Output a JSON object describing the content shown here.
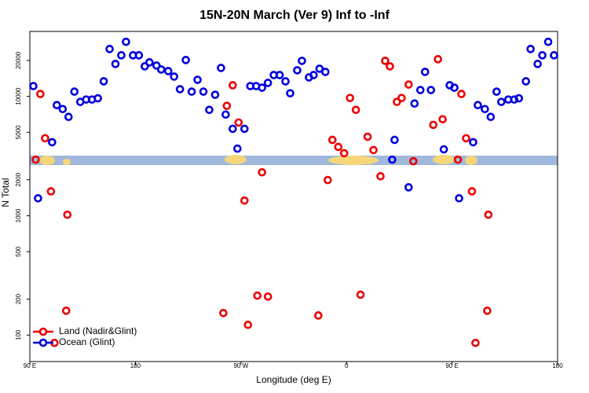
{
  "chart_data": {
    "type": "scatter",
    "title": "15N-20N March (Ver 9)   Inf to -Inf",
    "x_label": "Longitude (deg E)",
    "y_label": "N Total",
    "log_y": true,
    "legend": "bottom-left",
    "xlim": [
      90,
      540
    ],
    "xticks": [
      {
        "value": 90,
        "label": "90 E"
      },
      {
        "value": 180,
        "label": "180"
      },
      {
        "value": 270,
        "label": "90 W"
      },
      {
        "value": 360,
        "label": "0"
      },
      {
        "value": 450,
        "label": "90 E"
      },
      {
        "value": 540,
        "label": "180"
      }
    ],
    "ylim": [
      60,
      35000
    ],
    "yticks": [
      100,
      200,
      500,
      1000,
      2000,
      5000,
      10000,
      20000
    ],
    "series": [
      {
        "name": "Land (Nadir&Glint)",
        "color": "#ee0000",
        "x": [
          95,
          99,
          103,
          108,
          111,
          121,
          122,
          255,
          258,
          263,
          268,
          273,
          276,
          284,
          288,
          293,
          336,
          344,
          348,
          353,
          358,
          363,
          368,
          372,
          378,
          383,
          389,
          393,
          397,
          403,
          407,
          413,
          417,
          434,
          438,
          442,
          455,
          458,
          462,
          467,
          470,
          480,
          481
        ],
        "values": [
          2950,
          10470,
          4460,
          1600,
          86,
          160,
          1020,
          153,
          8330,
          12390,
          6040,
          1340,
          122,
          214,
          2310,
          210,
          146,
          1990,
          4320,
          3770,
          3340,
          9700,
          7710,
          218,
          4590,
          3550,
          2140,
          19850,
          17860,
          8990,
          9700,
          12570,
          2860,
          5770,
          20480,
          6430,
          2950,
          10470,
          4460,
          1600,
          86,
          160,
          1020
        ]
      },
      {
        "name": "Ocean (Glint)",
        "color": "#0000dd",
        "x": [
          93,
          97,
          109,
          113,
          118,
          123,
          128,
          133,
          138,
          143,
          148,
          153,
          158,
          163,
          168,
          172,
          178,
          183,
          188,
          192,
          198,
          202,
          208,
          213,
          218,
          223,
          228,
          233,
          238,
          243,
          248,
          253,
          257,
          263,
          267,
          273,
          278,
          283,
          288,
          293,
          298,
          303,
          308,
          312,
          318,
          322,
          328,
          332,
          337,
          342,
          399,
          401,
          413,
          418,
          423,
          427,
          432,
          443,
          448,
          452,
          456,
          468,
          472,
          478,
          483,
          488,
          492,
          498,
          503,
          507,
          513,
          517,
          523,
          527,
          532,
          537
        ],
        "values": [
          12200,
          1400,
          4130,
          8450,
          7830,
          6730,
          10960,
          8990,
          9410,
          9410,
          9640,
          13370,
          24950,
          18700,
          22100,
          28640,
          22100,
          22100,
          17860,
          19270,
          18130,
          16800,
          16290,
          14650,
          11480,
          20170,
          10960,
          13770,
          10960,
          7710,
          10310,
          17310,
          7040,
          5350,
          3650,
          5350,
          12200,
          12200,
          11830,
          12970,
          15090,
          15090,
          13370,
          10620,
          16550,
          19850,
          14420,
          15090,
          17060,
          16040,
          2950,
          4320,
          1730,
          8710,
          11300,
          16040,
          11300,
          3600,
          12390,
          11830,
          1400,
          4130,
          8450,
          7830,
          6730,
          10960,
          8990,
          9410,
          9410,
          9640,
          13370,
          24950,
          18700,
          22100,
          28640,
          22100
        ]
      }
    ]
  }
}
